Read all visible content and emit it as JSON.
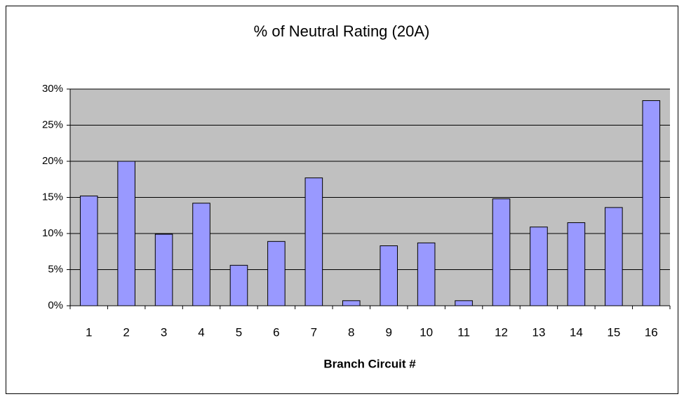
{
  "chart_data": {
    "type": "bar",
    "title": "% of Neutral Rating (20A)",
    "x_label": "Branch Circuit #",
    "categories": [
      "1",
      "2",
      "3",
      "4",
      "5",
      "6",
      "7",
      "8",
      "9",
      "10",
      "11",
      "12",
      "13",
      "14",
      "15",
      "16"
    ],
    "values": [
      15.2,
      20,
      9.9,
      14.2,
      5.6,
      8.9,
      17.7,
      0.7,
      8.3,
      8.7,
      0.7,
      14.8,
      10.9,
      11.5,
      13.6,
      28.4
    ],
    "color": "#9999ff",
    "ylim": [
      0,
      30
    ],
    "yticks": [
      {
        "value": 0,
        "label": "0%"
      },
      {
        "value": 5,
        "label": "5%"
      },
      {
        "value": 10,
        "label": "10%"
      },
      {
        "value": 15,
        "label": "15%"
      },
      {
        "value": 20,
        "label": "20%"
      },
      {
        "value": 25,
        "label": "25%"
      },
      {
        "value": 30,
        "label": "30%"
      }
    ],
    "grid": true
  }
}
